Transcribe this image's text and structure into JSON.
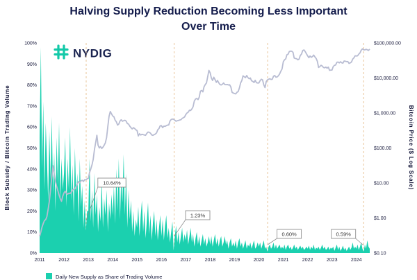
{
  "title": {
    "line1": "Halving Supply Reduction Becoming Less Important",
    "line2": "Over Time"
  },
  "logo": {
    "name": "NYDIG"
  },
  "colors": {
    "supply_area": "#1bd0af",
    "price_line": "#b8bcd2",
    "halving_line": "#e9c49a",
    "title_text": "#131b4b",
    "callout_border": "#8f8f8f"
  },
  "chart_data": {
    "type": "area+line",
    "title": "Halving Supply Reduction Becoming Less Important Over Time",
    "x_range": [
      2011.0,
      2024.55
    ],
    "x_ticks": [
      "2011",
      "2012",
      "2013",
      "2014",
      "2015",
      "2016",
      "2017",
      "2018",
      "2019",
      "2020",
      "2021",
      "2022",
      "2023",
      "2024"
    ],
    "left_axis": {
      "label": "Block Subsidy / Bitcoin Trading Volume",
      "ticks": [
        "100%",
        "90%",
        "80%",
        "70%",
        "60%",
        "50%",
        "40%",
        "30%",
        "20%",
        "10%",
        "0%"
      ],
      "min": 0,
      "max": 100
    },
    "right_axis": {
      "label": "Bitcoin Price ($ Log Scale)",
      "ticks": [
        "$100,000.00",
        "$10,000.00",
        "$1,000.00",
        "$100.00",
        "$10.00",
        "$1.00",
        "$0.10"
      ],
      "min": 0.1,
      "max": 100000,
      "scale": "log"
    },
    "halvings": [
      {
        "t": 2012.91,
        "label": "10.64%"
      },
      {
        "t": 2016.52,
        "label": "1.23%"
      },
      {
        "t": 2020.36,
        "label": "0.60%"
      },
      {
        "t": 2024.3,
        "label": "0.59%"
      }
    ],
    "legend": [
      {
        "label": "Daily New Supply as Share of Trading Volume",
        "color": "#1bd0af"
      }
    ],
    "series": [
      {
        "name": "Daily New Supply as Share of Trading Volume",
        "type": "area",
        "axis": "left",
        "color": "#1bd0af",
        "t_start": 2011.0,
        "dt": 0.05,
        "values": [
          55,
          98,
          40,
          72,
          30,
          62,
          45,
          25,
          58,
          35,
          65,
          28,
          48,
          20,
          55,
          32,
          62,
          25,
          45,
          30,
          38,
          55,
          22,
          45,
          30,
          60,
          25,
          42,
          18,
          50,
          28,
          38,
          15,
          45,
          22,
          32,
          12,
          25,
          10.6,
          20,
          20,
          45,
          15,
          30,
          12,
          38,
          18,
          28,
          10,
          22,
          15,
          35,
          12,
          26,
          18,
          30,
          10,
          24,
          16,
          28,
          18,
          32,
          14,
          40,
          20,
          45,
          16,
          36,
          24,
          47,
          18,
          38,
          12,
          30,
          16,
          25,
          10,
          20,
          8,
          16,
          12,
          22,
          8,
          18,
          25,
          10,
          20,
          7,
          15,
          24,
          9,
          18,
          6,
          14,
          20,
          8,
          16,
          6,
          12,
          18,
          8,
          16,
          6,
          13,
          18,
          7,
          12,
          5,
          10,
          15,
          1.2,
          8,
          13,
          5,
          10,
          4,
          8,
          12,
          5,
          9,
          6,
          11,
          4,
          8,
          12,
          5,
          9,
          3,
          7,
          10,
          4,
          8,
          3,
          6,
          9,
          4,
          7,
          3,
          5,
          8,
          4,
          8,
          3,
          6,
          9,
          4,
          7,
          3,
          6,
          8,
          3,
          5,
          8,
          4,
          6,
          2,
          5,
          7,
          3,
          5,
          3,
          6,
          2,
          5,
          7,
          3,
          5,
          2,
          4,
          6,
          2,
          4,
          3,
          5,
          2,
          4,
          6,
          2,
          3,
          5,
          3,
          5,
          2,
          4,
          6,
          2,
          3,
          0.6,
          3,
          4,
          2,
          3,
          5,
          2,
          4,
          2,
          3,
          4,
          2,
          3,
          2,
          4,
          1.5,
          3,
          4,
          2,
          3,
          1.5,
          2.5,
          4,
          2,
          3,
          1.5,
          2.5,
          3.5,
          2,
          3,
          1.5,
          2,
          3,
          2,
          3.5,
          1.5,
          3,
          2,
          4,
          1.5,
          2.5,
          2,
          3,
          1.5,
          2.5,
          4,
          2,
          3,
          1.5,
          2,
          3,
          1.5,
          2.5,
          2,
          3,
          1,
          2.5,
          4,
          1.5,
          3,
          1,
          2,
          3.5,
          1.5,
          2.5,
          1,
          2,
          3,
          1.5,
          2.5,
          5,
          2,
          3,
          2,
          4,
          1.5,
          3,
          5,
          2,
          0.59,
          4,
          2,
          6,
          3,
          2
        ]
      },
      {
        "name": "Bitcoin Price",
        "type": "line",
        "axis": "right",
        "color": "#b8bcd2",
        "t_start": 2011.0,
        "dt": 0.05,
        "values": [
          0.3,
          0.4,
          0.55,
          0.7,
          0.85,
          0.9,
          1.1,
          1.8,
          3.0,
          6.5,
          15,
          31,
          18,
          11,
          8,
          6,
          4.5,
          3.5,
          3.0,
          4.2,
          5.2,
          5.8,
          5.0,
          4.8,
          5.1,
          5.0,
          5.4,
          6.2,
          6.6,
          6.8,
          8.0,
          9.5,
          11.0,
          10.2,
          11.5,
          12.0,
          11.0,
          12.5,
          12.3,
          13.2,
          13.5,
          20,
          25,
          33,
          47,
          90,
          140,
          230,
          120,
          100,
          110,
          97,
          105,
          120,
          140,
          200,
          420,
          800,
          1100,
          950,
          820,
          780,
          620,
          560,
          450,
          480,
          590,
          640,
          580,
          600,
          620,
          590,
          500,
          480,
          420,
          380,
          350,
          380,
          360,
          330,
          315,
          220,
          255,
          235,
          245,
          240,
          235,
          230,
          260,
          285,
          280,
          265,
          235,
          230,
          240,
          250,
          270,
          330,
          360,
          430,
          435,
          380,
          420,
          415,
          435,
          450,
          455,
          580,
          650,
          670,
          660,
          620,
          580,
          600,
          610,
          630,
          640,
          700,
          730,
          770,
          900,
          1000,
          1050,
          1200,
          1180,
          1300,
          1500,
          2200,
          2500,
          2600,
          2400,
          2800,
          4200,
          4400,
          4000,
          5600,
          6500,
          7200,
          11000,
          16500,
          14000,
          10000,
          8500,
          10500,
          9000,
          7500,
          8500,
          7300,
          6500,
          6300,
          6600,
          7200,
          6500,
          6400,
          6500,
          6300,
          6400,
          5500,
          3900,
          3700,
          3600,
          3500,
          3900,
          4100,
          5200,
          7200,
          8500,
          11500,
          10800,
          10200,
          11800,
          10300,
          9500,
          10000,
          8300,
          8000,
          7400,
          8600,
          7300,
          7200,
          7200,
          8400,
          9200,
          8800,
          6400,
          5300,
          7800,
          8800,
          9200,
          9500,
          9100,
          9200,
          11200,
          11800,
          10500,
          10700,
          11500,
          13000,
          15500,
          18000,
          29000,
          33000,
          35000,
          46000,
          48000,
          57000,
          58500,
          58000,
          54000,
          37000,
          36000,
          35500,
          33000,
          34500,
          44000,
          48000,
          61000,
          63000,
          57000,
          49000,
          43000,
          38000,
          42500,
          39000,
          41000,
          45000,
          40000,
          36000,
          30000,
          20000,
          21000,
          23000,
          22000,
          20000,
          19500,
          20500,
          19000,
          20500,
          16500,
          16800,
          16800,
          21000,
          23000,
          23500,
          28000,
          28500,
          27000,
          29000,
          27200,
          26500,
          30500,
          30000,
          29300,
          29500,
          26000,
          27000,
          28500,
          34500,
          37500,
          43000,
          42500,
          43000,
          48000,
          52000,
          62000,
          68000,
          64000,
          63500,
          66000,
          64000,
          61000,
          67000
        ]
      }
    ]
  }
}
